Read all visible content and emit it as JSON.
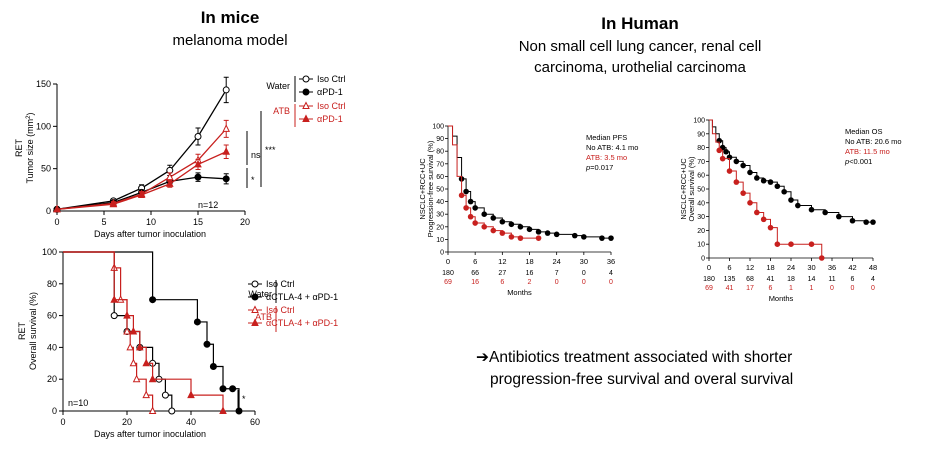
{
  "colors": {
    "water": "#000000",
    "atb": "#c8201e"
  },
  "left_section": {
    "title": "In mice",
    "subtitle": "melanoma model"
  },
  "right_section": {
    "title": "In Human",
    "subtitle_line1": "Non small cell lung cancer, renal cell",
    "subtitle_line2": "carcinoma, urothelial carcinoma",
    "conclusion_arrow": "➔",
    "conclusion_line1": "Antibiotics treatment associated with shorter",
    "conclusion_line2": "progression-free survival and overal survival"
  },
  "chart_data": [
    {
      "type": "line",
      "ylabel_line1": "RET",
      "ylabel_line2": "Tumor size (mm",
      "ylabel_sup": "2",
      "ylabel_end": ")",
      "xlabel": "Days after tumor inoculation",
      "xlim": [
        0,
        20
      ],
      "ylim": [
        0,
        150
      ],
      "xticks": [
        0,
        5,
        10,
        15,
        20
      ],
      "yticks": [
        0,
        50,
        100,
        150
      ],
      "annotation_n": "n=12",
      "legend_groups": [
        "Water",
        "ATB"
      ],
      "series": [
        {
          "name": "Iso Ctrl",
          "group": "Water",
          "marker": "circle-open",
          "x": [
            0,
            6,
            9,
            12,
            15,
            18
          ],
          "y": [
            2,
            12,
            27,
            48,
            88,
            143
          ],
          "err": [
            0,
            2,
            4,
            6,
            10,
            15
          ]
        },
        {
          "name": "αPD-1",
          "group": "Water",
          "marker": "circle-filled",
          "x": [
            0,
            6,
            9,
            12,
            15,
            18
          ],
          "y": [
            2,
            10,
            22,
            35,
            40,
            38
          ],
          "err": [
            0,
            2,
            3,
            4,
            5,
            6
          ]
        },
        {
          "name": "Iso Ctrl",
          "group": "ATB",
          "marker": "triangle-open",
          "x": [
            0,
            6,
            9,
            12,
            15,
            18
          ],
          "y": [
            2,
            9,
            20,
            40,
            60,
            97
          ],
          "err": [
            0,
            2,
            3,
            5,
            7,
            10
          ]
        },
        {
          "name": "αPD-1",
          "group": "ATB",
          "marker": "triangle-filled",
          "x": [
            0,
            6,
            9,
            12,
            15,
            18
          ],
          "y": [
            2,
            8,
            19,
            32,
            55,
            70
          ],
          "err": [
            0,
            2,
            3,
            4,
            6,
            8
          ]
        }
      ],
      "significance": [
        "ns",
        "***",
        "*"
      ]
    },
    {
      "type": "line",
      "subtype": "survival-step",
      "ylabel_line1": "RET",
      "ylabel_line2": "Overall survival (%)",
      "xlabel": "Days after tumor inoculation",
      "xlim": [
        0,
        60
      ],
      "ylim": [
        0,
        100
      ],
      "xticks": [
        0,
        20,
        40,
        60
      ],
      "yticks": [
        0,
        20,
        40,
        60,
        80,
        100
      ],
      "annotation_n": "n=10",
      "legend_groups": [
        "Water",
        "ATB"
      ],
      "series": [
        {
          "name": "Iso Ctrl",
          "group": "Water",
          "marker": "circle-open",
          "x": [
            0,
            16,
            20,
            24,
            28,
            30,
            32,
            34
          ],
          "y": [
            100,
            60,
            50,
            40,
            30,
            20,
            10,
            0
          ]
        },
        {
          "name": "αCTLA-4 + αPD-1",
          "group": "Water",
          "marker": "circle-filled",
          "x": [
            0,
            28,
            42,
            45,
            47,
            50,
            53,
            55
          ],
          "y": [
            100,
            70,
            56,
            42,
            28,
            14,
            14,
            0
          ]
        },
        {
          "name": "Iso Ctrl",
          "group": "ATB",
          "marker": "triangle-open",
          "x": [
            0,
            16,
            18,
            20,
            21,
            22,
            23,
            26,
            28
          ],
          "y": [
            100,
            90,
            70,
            50,
            40,
            30,
            20,
            10,
            0
          ]
        },
        {
          "name": "αCTLA-4 + αPD-1",
          "group": "ATB",
          "marker": "triangle-filled",
          "x": [
            0,
            16,
            20,
            22,
            24,
            26,
            28,
            40,
            50
          ],
          "y": [
            100,
            70,
            60,
            50,
            40,
            30,
            20,
            10,
            0
          ]
        }
      ],
      "significance": [
        "*"
      ]
    },
    {
      "type": "line",
      "subtype": "survival-step",
      "ylabel_line1": "NSCLC+RCC+UC",
      "ylabel_line2": "Progression-free survival (%)",
      "xlabel": "Months",
      "xlim": [
        0,
        36
      ],
      "ylim": [
        0,
        100
      ],
      "xticks": [
        0,
        6,
        12,
        18,
        24,
        30,
        36
      ],
      "yticks": [
        0,
        10,
        20,
        30,
        40,
        50,
        60,
        70,
        80,
        90,
        100
      ],
      "median_title": "Median PFS",
      "median_noatb": "No ATB: 4.1 mo",
      "median_atb": "ATB: 3.5 mo",
      "p_label": "p",
      "p_value": "=0.017",
      "at_risk_noatb": [
        "180",
        "66",
        "27",
        "16",
        "7",
        "0",
        "4"
      ],
      "at_risk_atb": [
        "69",
        "16",
        "6",
        "2",
        "0",
        "0",
        "0"
      ],
      "series": [
        {
          "name": "No ATB",
          "x": [
            0,
            1,
            2,
            3,
            4,
            5,
            6,
            8,
            10,
            12,
            14,
            16,
            18,
            20,
            22,
            24,
            28,
            30,
            34,
            36
          ],
          "y": [
            100,
            92,
            75,
            58,
            48,
            40,
            35,
            30,
            27,
            24,
            22,
            20,
            18,
            16,
            15,
            14,
            13,
            12,
            11,
            11
          ]
        },
        {
          "name": "ATB",
          "x": [
            0,
            1,
            2,
            3,
            4,
            5,
            6,
            8,
            10,
            12,
            14,
            16,
            20
          ],
          "y": [
            100,
            85,
            60,
            45,
            35,
            28,
            23,
            20,
            17,
            15,
            12,
            11,
            11
          ]
        }
      ]
    },
    {
      "type": "line",
      "subtype": "survival-step",
      "ylabel_line1": "NSCLC+RCC+UC",
      "ylabel_line2": "Overall survival (%)",
      "xlabel": "Months",
      "xlim": [
        0,
        48
      ],
      "ylim": [
        0,
        100
      ],
      "xticks": [
        0,
        6,
        12,
        18,
        24,
        30,
        36,
        42,
        48
      ],
      "yticks": [
        0,
        10,
        20,
        30,
        40,
        50,
        60,
        70,
        80,
        90,
        100
      ],
      "median_title": "Median OS",
      "median_noatb": "No ATB: 20.6 mo",
      "median_atb": "ATB: 11.5 mo",
      "p_label": "p",
      "p_value": "<0.001",
      "at_risk_noatb": [
        "180",
        "135",
        "68",
        "41",
        "18",
        "14",
        "11",
        "6",
        "4"
      ],
      "at_risk_atb": [
        "69",
        "41",
        "17",
        "6",
        "1",
        "1",
        "0",
        "0",
        "0"
      ],
      "series": [
        {
          "name": "No ATB",
          "x": [
            0,
            1,
            2,
            3,
            4,
            5,
            6,
            8,
            10,
            12,
            14,
            16,
            18,
            20,
            22,
            24,
            26,
            30,
            34,
            38,
            42,
            46,
            48
          ],
          "y": [
            100,
            95,
            90,
            85,
            80,
            77,
            73,
            70,
            67,
            62,
            58,
            56,
            55,
            52,
            48,
            42,
            38,
            35,
            33,
            30,
            27,
            26,
            26
          ]
        },
        {
          "name": "ATB",
          "x": [
            0,
            1,
            2,
            3,
            4,
            6,
            8,
            10,
            12,
            14,
            16,
            18,
            20,
            24,
            30,
            33
          ],
          "y": [
            100,
            90,
            84,
            78,
            72,
            63,
            55,
            47,
            40,
            33,
            28,
            22,
            10,
            10,
            10,
            0
          ]
        }
      ]
    }
  ]
}
